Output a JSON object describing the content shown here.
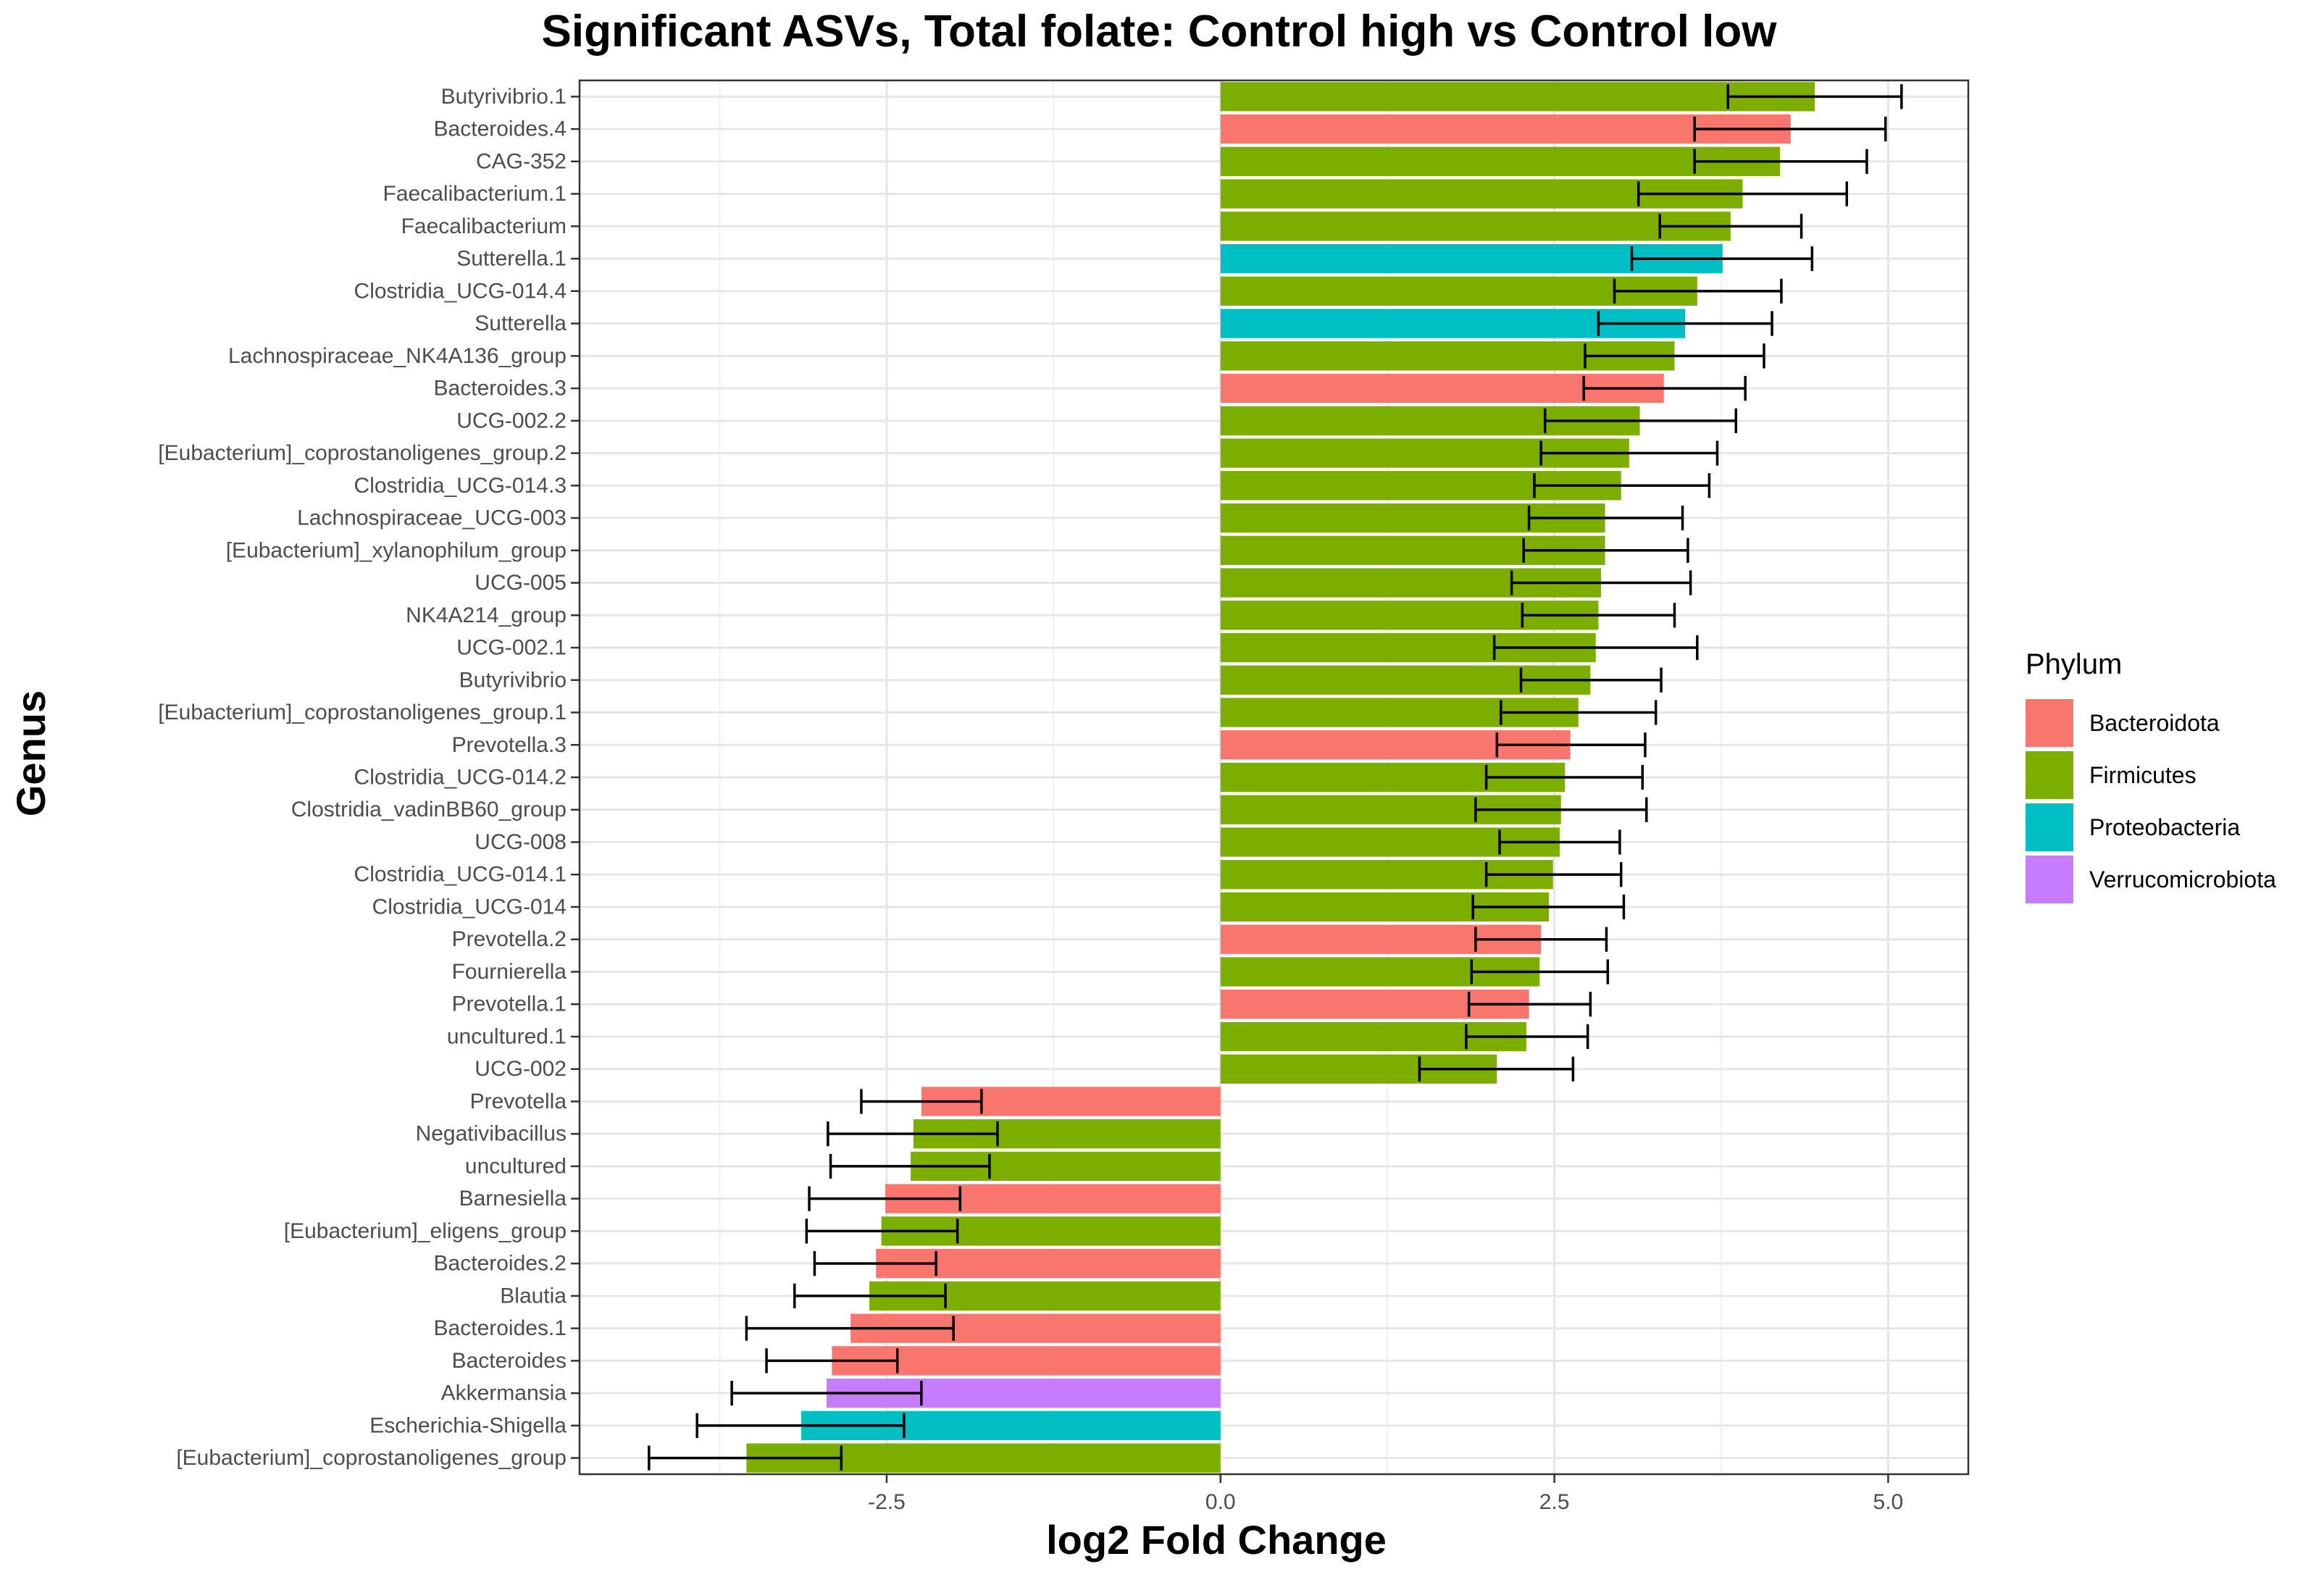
{
  "chart_data": {
    "type": "bar",
    "orientation": "horizontal",
    "title": "Significant ASVs, Total folate: Control high vs Control low",
    "xlabel": "log2 Fold Change",
    "ylabel": "Genus",
    "xlim": [
      -4.8,
      5.6
    ],
    "xticks": [
      -2.5,
      0.0,
      2.5,
      5.0
    ],
    "xtick_labels": [
      "-2.5",
      "0.0",
      "2.5",
      "5.0"
    ],
    "grid": true,
    "legend": {
      "title": "Phylum",
      "position": "right",
      "entries": [
        {
          "name": "Bacteroidota",
          "color": "#F8766D"
        },
        {
          "name": "Firmicutes",
          "color": "#7CAE00"
        },
        {
          "name": "Proteobacteria",
          "color": "#00BFC4"
        },
        {
          "name": "Verrucomicrobiota",
          "color": "#C77CFF"
        }
      ]
    },
    "bars": [
      {
        "genus": "Butyrivibrio.1",
        "value": 4.45,
        "err_low": 3.8,
        "err_high": 5.1,
        "phylum": "Firmicutes"
      },
      {
        "genus": "Bacteroides.4",
        "value": 4.27,
        "err_low": 3.55,
        "err_high": 4.98,
        "phylum": "Bacteroidota"
      },
      {
        "genus": "CAG-352",
        "value": 4.19,
        "err_low": 3.55,
        "err_high": 4.84,
        "phylum": "Firmicutes"
      },
      {
        "genus": "Faecalibacterium.1",
        "value": 3.91,
        "err_low": 3.13,
        "err_high": 4.69,
        "phylum": "Firmicutes"
      },
      {
        "genus": "Faecalibacterium",
        "value": 3.82,
        "err_low": 3.29,
        "err_high": 4.35,
        "phylum": "Firmicutes"
      },
      {
        "genus": "Sutterella.1",
        "value": 3.76,
        "err_low": 3.08,
        "err_high": 4.43,
        "phylum": "Proteobacteria"
      },
      {
        "genus": "Clostridia_UCG-014.4",
        "value": 3.57,
        "err_low": 2.95,
        "err_high": 4.2,
        "phylum": "Firmicutes"
      },
      {
        "genus": "Sutterella",
        "value": 3.48,
        "err_low": 2.83,
        "err_high": 4.13,
        "phylum": "Proteobacteria"
      },
      {
        "genus": "Lachnospiraceae_NK4A136_group",
        "value": 3.4,
        "err_low": 2.73,
        "err_high": 4.07,
        "phylum": "Firmicutes"
      },
      {
        "genus": "Bacteroides.3",
        "value": 3.32,
        "err_low": 2.72,
        "err_high": 3.93,
        "phylum": "Bacteroidota"
      },
      {
        "genus": "UCG-002.2",
        "value": 3.14,
        "err_low": 2.43,
        "err_high": 3.86,
        "phylum": "Firmicutes"
      },
      {
        "genus": "[Eubacterium]_coprostanoligenes_group.2",
        "value": 3.06,
        "err_low": 2.4,
        "err_high": 3.72,
        "phylum": "Firmicutes"
      },
      {
        "genus": "Clostridia_UCG-014.3",
        "value": 3.0,
        "err_low": 2.35,
        "err_high": 3.66,
        "phylum": "Firmicutes"
      },
      {
        "genus": "Lachnospiraceae_UCG-003",
        "value": 2.88,
        "err_low": 2.31,
        "err_high": 3.46,
        "phylum": "Firmicutes"
      },
      {
        "genus": "[Eubacterium]_xylanophilum_group",
        "value": 2.88,
        "err_low": 2.27,
        "err_high": 3.5,
        "phylum": "Firmicutes"
      },
      {
        "genus": "UCG-005",
        "value": 2.85,
        "err_low": 2.18,
        "err_high": 3.52,
        "phylum": "Firmicutes"
      },
      {
        "genus": "NK4A214_group",
        "value": 2.83,
        "err_low": 2.26,
        "err_high": 3.4,
        "phylum": "Firmicutes"
      },
      {
        "genus": "UCG-002.1",
        "value": 2.81,
        "err_low": 2.05,
        "err_high": 3.57,
        "phylum": "Firmicutes"
      },
      {
        "genus": "Butyrivibrio",
        "value": 2.77,
        "err_low": 2.25,
        "err_high": 3.3,
        "phylum": "Firmicutes"
      },
      {
        "genus": "[Eubacterium]_coprostanoligenes_group.1",
        "value": 2.68,
        "err_low": 2.1,
        "err_high": 3.26,
        "phylum": "Firmicutes"
      },
      {
        "genus": "Prevotella.3",
        "value": 2.62,
        "err_low": 2.07,
        "err_high": 3.18,
        "phylum": "Bacteroidota"
      },
      {
        "genus": "Clostridia_UCG-014.2",
        "value": 2.58,
        "err_low": 1.99,
        "err_high": 3.16,
        "phylum": "Firmicutes"
      },
      {
        "genus": "Clostridia_vadinBB60_group",
        "value": 2.55,
        "err_low": 1.91,
        "err_high": 3.19,
        "phylum": "Firmicutes"
      },
      {
        "genus": "UCG-008",
        "value": 2.54,
        "err_low": 2.09,
        "err_high": 2.99,
        "phylum": "Firmicutes"
      },
      {
        "genus": "Clostridia_UCG-014.1",
        "value": 2.49,
        "err_low": 1.99,
        "err_high": 3.0,
        "phylum": "Firmicutes"
      },
      {
        "genus": "Clostridia_UCG-014",
        "value": 2.46,
        "err_low": 1.89,
        "err_high": 3.02,
        "phylum": "Firmicutes"
      },
      {
        "genus": "Prevotella.2",
        "value": 2.4,
        "err_low": 1.91,
        "err_high": 2.89,
        "phylum": "Bacteroidota"
      },
      {
        "genus": "Fournierella",
        "value": 2.39,
        "err_low": 1.88,
        "err_high": 2.9,
        "phylum": "Firmicutes"
      },
      {
        "genus": "Prevotella.1",
        "value": 2.31,
        "err_low": 1.86,
        "err_high": 2.77,
        "phylum": "Bacteroidota"
      },
      {
        "genus": "uncultured.1",
        "value": 2.29,
        "err_low": 1.84,
        "err_high": 2.75,
        "phylum": "Firmicutes"
      },
      {
        "genus": "UCG-002",
        "value": 2.07,
        "err_low": 1.49,
        "err_high": 2.64,
        "phylum": "Firmicutes"
      },
      {
        "genus": "Prevotella",
        "value": -2.24,
        "err_low": -2.69,
        "err_high": -1.79,
        "phylum": "Bacteroidota"
      },
      {
        "genus": "Negativibacillus",
        "value": -2.3,
        "err_low": -2.94,
        "err_high": -1.67,
        "phylum": "Firmicutes"
      },
      {
        "genus": "uncultured",
        "value": -2.32,
        "err_low": -2.92,
        "err_high": -1.73,
        "phylum": "Firmicutes"
      },
      {
        "genus": "Barnesiella",
        "value": -2.51,
        "err_low": -3.08,
        "err_high": -1.95,
        "phylum": "Bacteroidota"
      },
      {
        "genus": "[Eubacterium]_eligens_group",
        "value": -2.54,
        "err_low": -3.1,
        "err_high": -1.97,
        "phylum": "Firmicutes"
      },
      {
        "genus": "Bacteroides.2",
        "value": -2.58,
        "err_low": -3.04,
        "err_high": -2.13,
        "phylum": "Bacteroidota"
      },
      {
        "genus": "Blautia",
        "value": -2.63,
        "err_low": -3.19,
        "err_high": -2.06,
        "phylum": "Firmicutes"
      },
      {
        "genus": "Bacteroides.1",
        "value": -2.77,
        "err_low": -3.55,
        "err_high": -2.0,
        "phylum": "Bacteroidota"
      },
      {
        "genus": "Bacteroides",
        "value": -2.91,
        "err_low": -3.4,
        "err_high": -2.42,
        "phylum": "Bacteroidota"
      },
      {
        "genus": "Akkermansia",
        "value": -2.95,
        "err_low": -3.66,
        "err_high": -2.24,
        "phylum": "Verrucomicrobiota"
      },
      {
        "genus": "Escherichia-Shigella",
        "value": -3.14,
        "err_low": -3.92,
        "err_high": -2.37,
        "phylum": "Proteobacteria"
      },
      {
        "genus": "[Eubacterium]_coprostanoligenes_group",
        "value": -3.55,
        "err_low": -4.28,
        "err_high": -2.84,
        "phylum": "Firmicutes"
      }
    ]
  }
}
